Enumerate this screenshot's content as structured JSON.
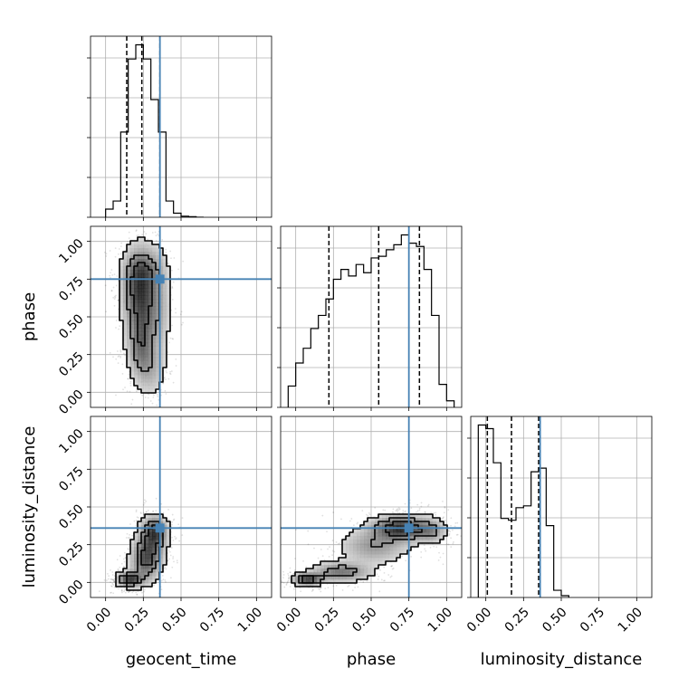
{
  "chart_data": {
    "type": "corner",
    "parameters": [
      "geocent_time",
      "phase",
      "luminosity_distance"
    ],
    "axis_labels": [
      "geocent_time",
      "phase",
      "luminosity_distance"
    ],
    "tick_values": [
      0.0,
      0.25,
      0.5,
      0.75,
      1.0
    ],
    "tick_labels": [
      "0.00",
      "0.25",
      "0.50",
      "0.75",
      "1.00"
    ],
    "axis_ranges": [
      [
        -0.1,
        1.1
      ],
      [
        -0.1,
        1.1
      ],
      [
        -0.1,
        1.1
      ]
    ],
    "grid": true,
    "truth_color": "#4682b4",
    "line_color": "#000000",
    "truths": {
      "geocent_time": 0.36,
      "phase": 0.75,
      "luminosity_distance": 0.36
    },
    "quantiles": {
      "geocent_time": [
        0.14,
        0.24,
        0.36
      ],
      "phase": [
        0.22,
        0.55,
        0.82
      ],
      "luminosity_distance": [
        0.01,
        0.17,
        0.35
      ]
    },
    "histograms": {
      "geocent_time": {
        "bin_edges": [
          0.0,
          0.05,
          0.1,
          0.15,
          0.2,
          0.25,
          0.3,
          0.35,
          0.4,
          0.45,
          0.5,
          0.55,
          0.6,
          0.65
        ],
        "counts": [
          4,
          8,
          42,
          78,
          85,
          78,
          58,
          42,
          8,
          2,
          0.5,
          0.3,
          0
        ]
      },
      "phase": {
        "bin_edges": [
          -0.05,
          0.0,
          0.05,
          0.1,
          0.15,
          0.2,
          0.25,
          0.3,
          0.35,
          0.4,
          0.45,
          0.5,
          0.55,
          0.6,
          0.65,
          0.7,
          0.75,
          0.8,
          0.85,
          0.9,
          0.95,
          1.0,
          1.05
        ],
        "counts": [
          13,
          27,
          36,
          48,
          56,
          66,
          78,
          84,
          80,
          87,
          82,
          91,
          92,
          96,
          99,
          105,
          100,
          98,
          84,
          56,
          14,
          4
        ]
      },
      "luminosity_distance": {
        "bin_edges": [
          -0.05,
          0.0,
          0.05,
          0.1,
          0.15,
          0.2,
          0.25,
          0.3,
          0.35,
          0.4,
          0.45,
          0.5,
          0.55
        ],
        "counts": [
          96,
          94,
          75,
          44,
          43,
          50,
          51,
          70,
          72,
          40,
          4,
          1
        ]
      }
    },
    "density_blobs": {
      "phase|geocent_time": [
        {
          "x": 0.22,
          "y": 0.7,
          "sx": 0.07,
          "sy": 0.16,
          "w": 0.28
        },
        {
          "x": 0.23,
          "y": 0.3,
          "sx": 0.05,
          "sy": 0.12,
          "w": 0.16
        },
        {
          "x": 0.25,
          "y": 0.5,
          "sx": 0.07,
          "sy": 0.22,
          "w": 0.2
        },
        {
          "x": 0.26,
          "y": 0.82,
          "sx": 0.08,
          "sy": 0.08,
          "w": 0.12
        },
        {
          "x": 0.3,
          "y": 0.14,
          "sx": 0.06,
          "sy": 0.1,
          "w": 0.1
        },
        {
          "x": 0.36,
          "y": 0.58,
          "sx": 0.05,
          "sy": 0.22,
          "w": 0.1
        }
      ],
      "luminosity_distance|geocent_time": [
        {
          "x": 0.16,
          "y": 0.02,
          "sx": 0.05,
          "sy": 0.03,
          "w": 0.34
        },
        {
          "x": 0.26,
          "y": 0.14,
          "sx": 0.06,
          "sy": 0.09,
          "w": 0.22
        },
        {
          "x": 0.33,
          "y": 0.34,
          "sx": 0.05,
          "sy": 0.06,
          "w": 0.26
        },
        {
          "x": 0.3,
          "y": 0.24,
          "sx": 0.06,
          "sy": 0.1,
          "w": 0.18
        }
      ],
      "luminosity_distance|phase": [
        {
          "x": 0.08,
          "y": 0.02,
          "sx": 0.06,
          "sy": 0.025,
          "w": 0.28
        },
        {
          "x": 0.3,
          "y": 0.07,
          "sx": 0.12,
          "sy": 0.04,
          "w": 0.2
        },
        {
          "x": 0.7,
          "y": 0.36,
          "sx": 0.12,
          "sy": 0.05,
          "w": 0.32
        },
        {
          "x": 0.52,
          "y": 0.24,
          "sx": 0.14,
          "sy": 0.07,
          "w": 0.14
        },
        {
          "x": 0.9,
          "y": 0.34,
          "sx": 0.06,
          "sy": 0.05,
          "w": 0.12
        }
      ]
    },
    "contour_levels": [
      0.15,
      0.55,
      0.9
    ]
  }
}
